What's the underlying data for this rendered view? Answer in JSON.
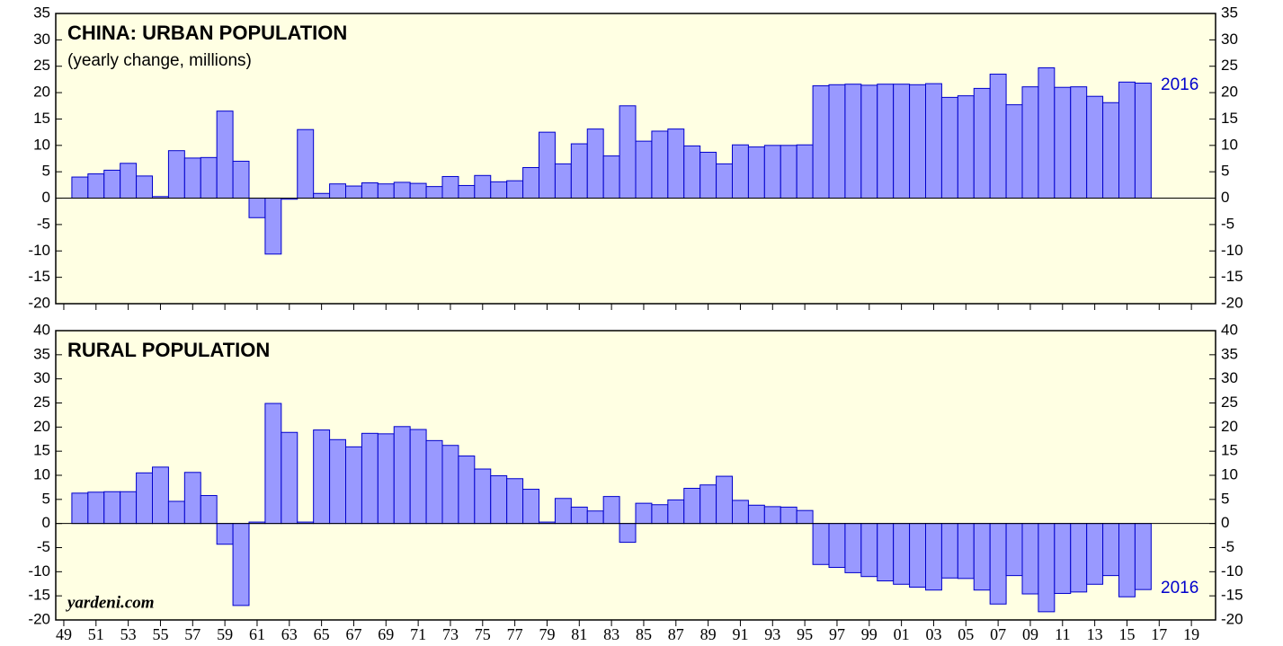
{
  "chart_data": [
    {
      "type": "bar",
      "title": "CHINA: URBAN POPULATION",
      "subtitle": "(yearly change, millions)",
      "x": [
        1950,
        1951,
        1952,
        1953,
        1954,
        1955,
        1956,
        1957,
        1958,
        1959,
        1960,
        1961,
        1962,
        1963,
        1964,
        1965,
        1966,
        1967,
        1968,
        1969,
        1970,
        1971,
        1972,
        1973,
        1974,
        1975,
        1976,
        1977,
        1978,
        1979,
        1980,
        1981,
        1982,
        1983,
        1984,
        1985,
        1986,
        1987,
        1988,
        1989,
        1990,
        1991,
        1992,
        1993,
        1994,
        1995,
        1996,
        1997,
        1998,
        1999,
        2000,
        2001,
        2002,
        2003,
        2004,
        2005,
        2006,
        2007,
        2008,
        2009,
        2010,
        2011,
        2012,
        2013,
        2014,
        2015,
        2016
      ],
      "values": [
        4.0,
        4.6,
        5.3,
        6.6,
        4.2,
        0.3,
        9.0,
        7.6,
        7.7,
        16.5,
        7.0,
        -3.7,
        -10.6,
        -0.2,
        13.0,
        0.9,
        2.7,
        2.3,
        2.9,
        2.7,
        3.0,
        2.8,
        2.2,
        4.1,
        2.4,
        4.3,
        3.1,
        3.3,
        5.8,
        12.5,
        6.5,
        10.3,
        13.1,
        8.0,
        17.5,
        10.8,
        12.7,
        13.1,
        9.9,
        8.7,
        6.5,
        10.1,
        9.7,
        10.0,
        10.0,
        10.1,
        21.3,
        21.5,
        21.6,
        21.4,
        21.6,
        21.6,
        21.5,
        21.7,
        19.1,
        19.4,
        20.8,
        23.5,
        17.7,
        21.1,
        24.7,
        21.0,
        21.1,
        19.3,
        18.1,
        22.0,
        21.8
      ],
      "color": "#9999ff",
      "edge_color": "#0000cc",
      "xlim": [
        1948.5,
        2020.5
      ],
      "ylim": [
        -20,
        35
      ],
      "yticks": [
        -20,
        -15,
        -10,
        -5,
        0,
        5,
        10,
        15,
        20,
        25,
        30,
        35
      ],
      "annotation": "2016"
    },
    {
      "type": "bar",
      "title": "RURAL POPULATION",
      "x": [
        1950,
        1951,
        1952,
        1953,
        1954,
        1955,
        1956,
        1957,
        1958,
        1959,
        1960,
        1961,
        1962,
        1963,
        1964,
        1965,
        1966,
        1967,
        1968,
        1969,
        1970,
        1971,
        1972,
        1973,
        1974,
        1975,
        1976,
        1977,
        1978,
        1979,
        1980,
        1981,
        1982,
        1983,
        1984,
        1985,
        1986,
        1987,
        1988,
        1989,
        1990,
        1991,
        1992,
        1993,
        1994,
        1995,
        1996,
        1997,
        1998,
        1999,
        2000,
        2001,
        2002,
        2003,
        2004,
        2005,
        2006,
        2007,
        2008,
        2009,
        2010,
        2011,
        2012,
        2013,
        2014,
        2015,
        2016
      ],
      "values": [
        6.3,
        6.5,
        6.6,
        6.6,
        10.5,
        11.7,
        4.6,
        10.6,
        5.8,
        -4.3,
        -17.0,
        0.3,
        24.9,
        18.9,
        0.3,
        19.4,
        17.4,
        15.9,
        18.7,
        18.6,
        20.1,
        19.5,
        17.2,
        16.2,
        14.0,
        11.3,
        9.9,
        9.3,
        7.1,
        0.3,
        5.2,
        3.4,
        2.6,
        5.6,
        -3.9,
        4.2,
        3.9,
        4.9,
        7.3,
        8.0,
        9.8,
        4.8,
        3.8,
        3.5,
        3.4,
        2.7,
        -8.5,
        -9.1,
        -10.2,
        -11.0,
        -11.9,
        -12.6,
        -13.2,
        -13.8,
        -11.3,
        -11.4,
        -13.8,
        -16.7,
        -10.8,
        -14.6,
        -18.3,
        -14.5,
        -14.2,
        -12.6,
        -10.8,
        -15.2,
        -13.7
      ],
      "color": "#9999ff",
      "edge_color": "#0000cc",
      "xlim": [
        1948.5,
        2020.5
      ],
      "ylim": [
        -20,
        40
      ],
      "yticks": [
        -20,
        -15,
        -10,
        -5,
        0,
        5,
        10,
        15,
        20,
        25,
        30,
        35,
        40
      ],
      "xticks": [
        {
          "value": 1949,
          "label": "49"
        },
        {
          "value": 1951,
          "label": "51"
        },
        {
          "value": 1953,
          "label": "53"
        },
        {
          "value": 1955,
          "label": "55"
        },
        {
          "value": 1957,
          "label": "57"
        },
        {
          "value": 1959,
          "label": "59"
        },
        {
          "value": 1961,
          "label": "61"
        },
        {
          "value": 1963,
          "label": "63"
        },
        {
          "value": 1965,
          "label": "65"
        },
        {
          "value": 1967,
          "label": "67"
        },
        {
          "value": 1969,
          "label": "69"
        },
        {
          "value": 1971,
          "label": "71"
        },
        {
          "value": 1973,
          "label": "73"
        },
        {
          "value": 1975,
          "label": "75"
        },
        {
          "value": 1977,
          "label": "77"
        },
        {
          "value": 1979,
          "label": "79"
        },
        {
          "value": 1981,
          "label": "81"
        },
        {
          "value": 1983,
          "label": "83"
        },
        {
          "value": 1985,
          "label": "85"
        },
        {
          "value": 1987,
          "label": "87"
        },
        {
          "value": 1989,
          "label": "89"
        },
        {
          "value": 1991,
          "label": "91"
        },
        {
          "value": 1993,
          "label": "93"
        },
        {
          "value": 1995,
          "label": "95"
        },
        {
          "value": 1997,
          "label": "97"
        },
        {
          "value": 1999,
          "label": "99"
        },
        {
          "value": 2001,
          "label": "01"
        },
        {
          "value": 2003,
          "label": "03"
        },
        {
          "value": 2005,
          "label": "05"
        },
        {
          "value": 2007,
          "label": "07"
        },
        {
          "value": 2009,
          "label": "09"
        },
        {
          "value": 2011,
          "label": "11"
        },
        {
          "value": 2013,
          "label": "13"
        },
        {
          "value": 2015,
          "label": "15"
        },
        {
          "value": 2017,
          "label": "17"
        },
        {
          "value": 2019,
          "label": "19"
        }
      ],
      "annotation": "2016",
      "source": "yardeni.com"
    }
  ]
}
